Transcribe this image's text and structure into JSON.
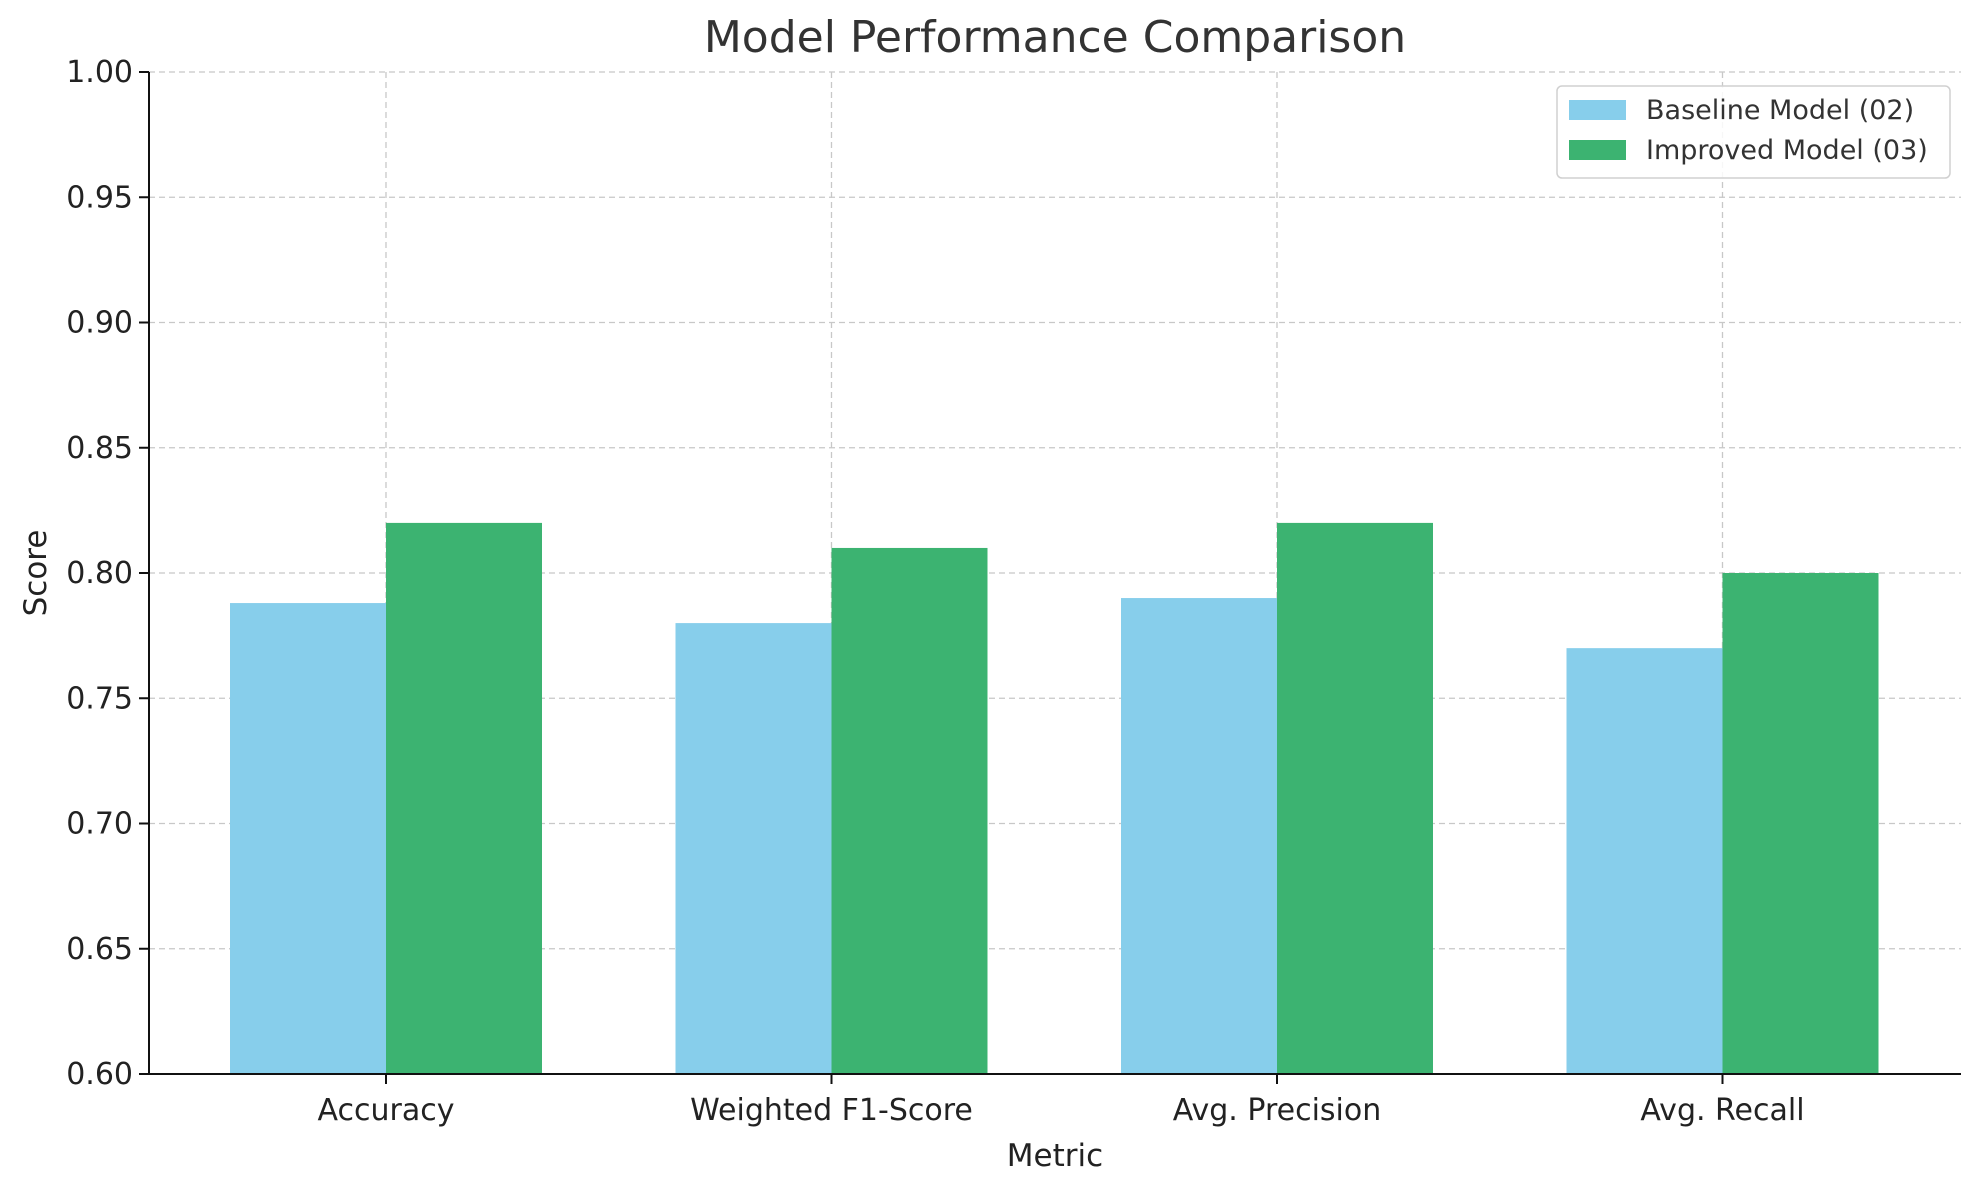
{
  "chart_data": {
    "type": "bar",
    "title": "Model Performance Comparison",
    "xlabel": "Metric",
    "ylabel": "Score",
    "categories": [
      "Accuracy",
      "Weighted F1-Score",
      "Avg. Precision",
      "Avg. Recall"
    ],
    "series": [
      {
        "name": "Baseline Model (02)",
        "values": [
          0.788,
          0.78,
          0.79,
          0.77
        ],
        "color": "#87CEEB"
      },
      {
        "name": "Improved Model (03)",
        "values": [
          0.82,
          0.81,
          0.82,
          0.8
        ],
        "color": "#3CB371"
      }
    ],
    "ylim": [
      0.6,
      1.0
    ],
    "yticks": [
      "0.60",
      "0.65",
      "0.70",
      "0.75",
      "0.80",
      "0.85",
      "0.90",
      "0.95",
      "1.00"
    ],
    "grid": true,
    "legend_position": "top-right"
  }
}
